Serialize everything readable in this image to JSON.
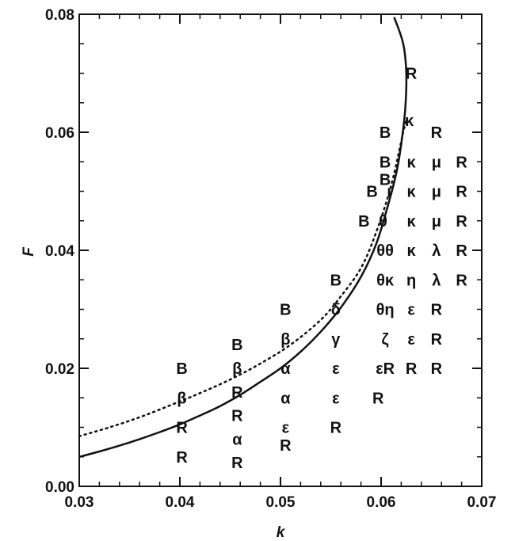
{
  "chart_data": {
    "type": "scatter",
    "title": "",
    "xlabel": "k",
    "ylabel": "F",
    "xlim": [
      0.03,
      0.07
    ],
    "ylim": [
      0.0,
      0.08
    ],
    "x_ticks": [
      "0.03",
      "0.04",
      "0.05",
      "0.06",
      "0.07"
    ],
    "y_ticks": [
      "0.00",
      "0.02",
      "0.04",
      "0.06",
      "0.08"
    ],
    "x_tick_values": [
      0.03,
      0.04,
      0.05,
      0.06,
      0.07
    ],
    "y_tick_values": [
      0.0,
      0.02,
      0.04,
      0.06,
      0.08
    ],
    "grid": false,
    "curves": [
      {
        "style": "solid",
        "color": "#111111",
        "points": [
          [
            0.03,
            0.005
          ],
          [
            0.032,
            0.0059
          ],
          [
            0.034,
            0.0069
          ],
          [
            0.036,
            0.008
          ],
          [
            0.038,
            0.0092
          ],
          [
            0.04,
            0.0105
          ],
          [
            0.042,
            0.012
          ],
          [
            0.044,
            0.0136
          ],
          [
            0.046,
            0.0155
          ],
          [
            0.048,
            0.0177
          ],
          [
            0.05,
            0.02
          ],
          [
            0.052,
            0.0228
          ],
          [
            0.054,
            0.0262
          ],
          [
            0.056,
            0.0303
          ],
          [
            0.058,
            0.0355
          ],
          [
            0.0595,
            0.041
          ],
          [
            0.0605,
            0.0465
          ],
          [
            0.0615,
            0.053
          ],
          [
            0.062,
            0.058
          ],
          [
            0.0624,
            0.064
          ],
          [
            0.0625,
            0.07
          ],
          [
            0.0622,
            0.075
          ],
          [
            0.0613,
            0.0795
          ]
        ]
      },
      {
        "style": "dotted",
        "color": "#111111",
        "points": [
          [
            0.03,
            0.0085
          ],
          [
            0.033,
            0.01
          ],
          [
            0.036,
            0.0117
          ],
          [
            0.039,
            0.0137
          ],
          [
            0.042,
            0.0158
          ],
          [
            0.045,
            0.0181
          ],
          [
            0.048,
            0.0208
          ],
          [
            0.051,
            0.024
          ],
          [
            0.054,
            0.0282
          ],
          [
            0.056,
            0.0322
          ],
          [
            0.058,
            0.037
          ],
          [
            0.0595,
            0.043
          ],
          [
            0.061,
            0.051
          ],
          [
            0.0622,
            0.06
          ],
          [
            0.0625,
            0.062
          ]
        ]
      }
    ],
    "points": [
      {
        "x": 0.0402,
        "y": 0.02,
        "label": "B"
      },
      {
        "x": 0.0402,
        "y": 0.015,
        "label": "β"
      },
      {
        "x": 0.0402,
        "y": 0.01,
        "label": "R"
      },
      {
        "x": 0.0402,
        "y": 0.005,
        "label": "R"
      },
      {
        "x": 0.0457,
        "y": 0.024,
        "label": "B"
      },
      {
        "x": 0.0457,
        "y": 0.02,
        "label": "β"
      },
      {
        "x": 0.0457,
        "y": 0.016,
        "label": "R"
      },
      {
        "x": 0.0457,
        "y": 0.012,
        "label": "R"
      },
      {
        "x": 0.0457,
        "y": 0.008,
        "label": "α"
      },
      {
        "x": 0.0457,
        "y": 0.004,
        "label": "R"
      },
      {
        "x": 0.0505,
        "y": 0.03,
        "label": "B"
      },
      {
        "x": 0.0505,
        "y": 0.025,
        "label": "β"
      },
      {
        "x": 0.0505,
        "y": 0.02,
        "label": "α"
      },
      {
        "x": 0.0505,
        "y": 0.015,
        "label": "α"
      },
      {
        "x": 0.0505,
        "y": 0.01,
        "label": "ε"
      },
      {
        "x": 0.0505,
        "y": 0.007,
        "label": "R"
      },
      {
        "x": 0.0555,
        "y": 0.035,
        "label": "B"
      },
      {
        "x": 0.0555,
        "y": 0.03,
        "label": "δ"
      },
      {
        "x": 0.0555,
        "y": 0.025,
        "label": "γ"
      },
      {
        "x": 0.0555,
        "y": 0.02,
        "label": "ε"
      },
      {
        "x": 0.0555,
        "y": 0.015,
        "label": "ε"
      },
      {
        "x": 0.0555,
        "y": 0.01,
        "label": "R"
      },
      {
        "x": 0.0583,
        "y": 0.045,
        "label": "B"
      },
      {
        "x": 0.0591,
        "y": 0.05,
        "label": "B"
      },
      {
        "x": 0.0602,
        "y": 0.045,
        "label": "θ"
      },
      {
        "x": 0.0604,
        "y": 0.04,
        "label": "θθ"
      },
      {
        "x": 0.0604,
        "y": 0.035,
        "label": "θκ"
      },
      {
        "x": 0.0604,
        "y": 0.03,
        "label": "θη"
      },
      {
        "x": 0.0604,
        "y": 0.025,
        "label": "ζ"
      },
      {
        "x": 0.0604,
        "y": 0.02,
        "label": "εR"
      },
      {
        "x": 0.0597,
        "y": 0.015,
        "label": "R"
      },
      {
        "x": 0.0604,
        "y": 0.06,
        "label": "B"
      },
      {
        "x": 0.0604,
        "y": 0.055,
        "label": "B"
      },
      {
        "x": 0.0604,
        "y": 0.052,
        "label": "B"
      },
      {
        "x": 0.0608,
        "y": 0.05,
        "label": "ι"
      },
      {
        "x": 0.063,
        "y": 0.07,
        "label": "R"
      },
      {
        "x": 0.0628,
        "y": 0.062,
        "label": "κ"
      },
      {
        "x": 0.063,
        "y": 0.055,
        "label": "κ"
      },
      {
        "x": 0.063,
        "y": 0.05,
        "label": "κ"
      },
      {
        "x": 0.063,
        "y": 0.045,
        "label": "κ"
      },
      {
        "x": 0.063,
        "y": 0.04,
        "label": "κ"
      },
      {
        "x": 0.063,
        "y": 0.035,
        "label": "η"
      },
      {
        "x": 0.063,
        "y": 0.03,
        "label": "ε"
      },
      {
        "x": 0.063,
        "y": 0.025,
        "label": "ε"
      },
      {
        "x": 0.063,
        "y": 0.02,
        "label": "R"
      },
      {
        "x": 0.0655,
        "y": 0.06,
        "label": "R"
      },
      {
        "x": 0.0655,
        "y": 0.055,
        "label": "μ"
      },
      {
        "x": 0.0655,
        "y": 0.05,
        "label": "μ"
      },
      {
        "x": 0.0655,
        "y": 0.045,
        "label": "μ"
      },
      {
        "x": 0.0655,
        "y": 0.04,
        "label": "λ"
      },
      {
        "x": 0.0655,
        "y": 0.035,
        "label": "λ"
      },
      {
        "x": 0.0655,
        "y": 0.03,
        "label": "R"
      },
      {
        "x": 0.0655,
        "y": 0.025,
        "label": "R"
      },
      {
        "x": 0.0655,
        "y": 0.02,
        "label": "R"
      },
      {
        "x": 0.068,
        "y": 0.055,
        "label": "R"
      },
      {
        "x": 0.068,
        "y": 0.05,
        "label": "R"
      },
      {
        "x": 0.068,
        "y": 0.045,
        "label": "R"
      },
      {
        "x": 0.068,
        "y": 0.04,
        "label": "R"
      },
      {
        "x": 0.068,
        "y": 0.035,
        "label": "R"
      }
    ]
  }
}
